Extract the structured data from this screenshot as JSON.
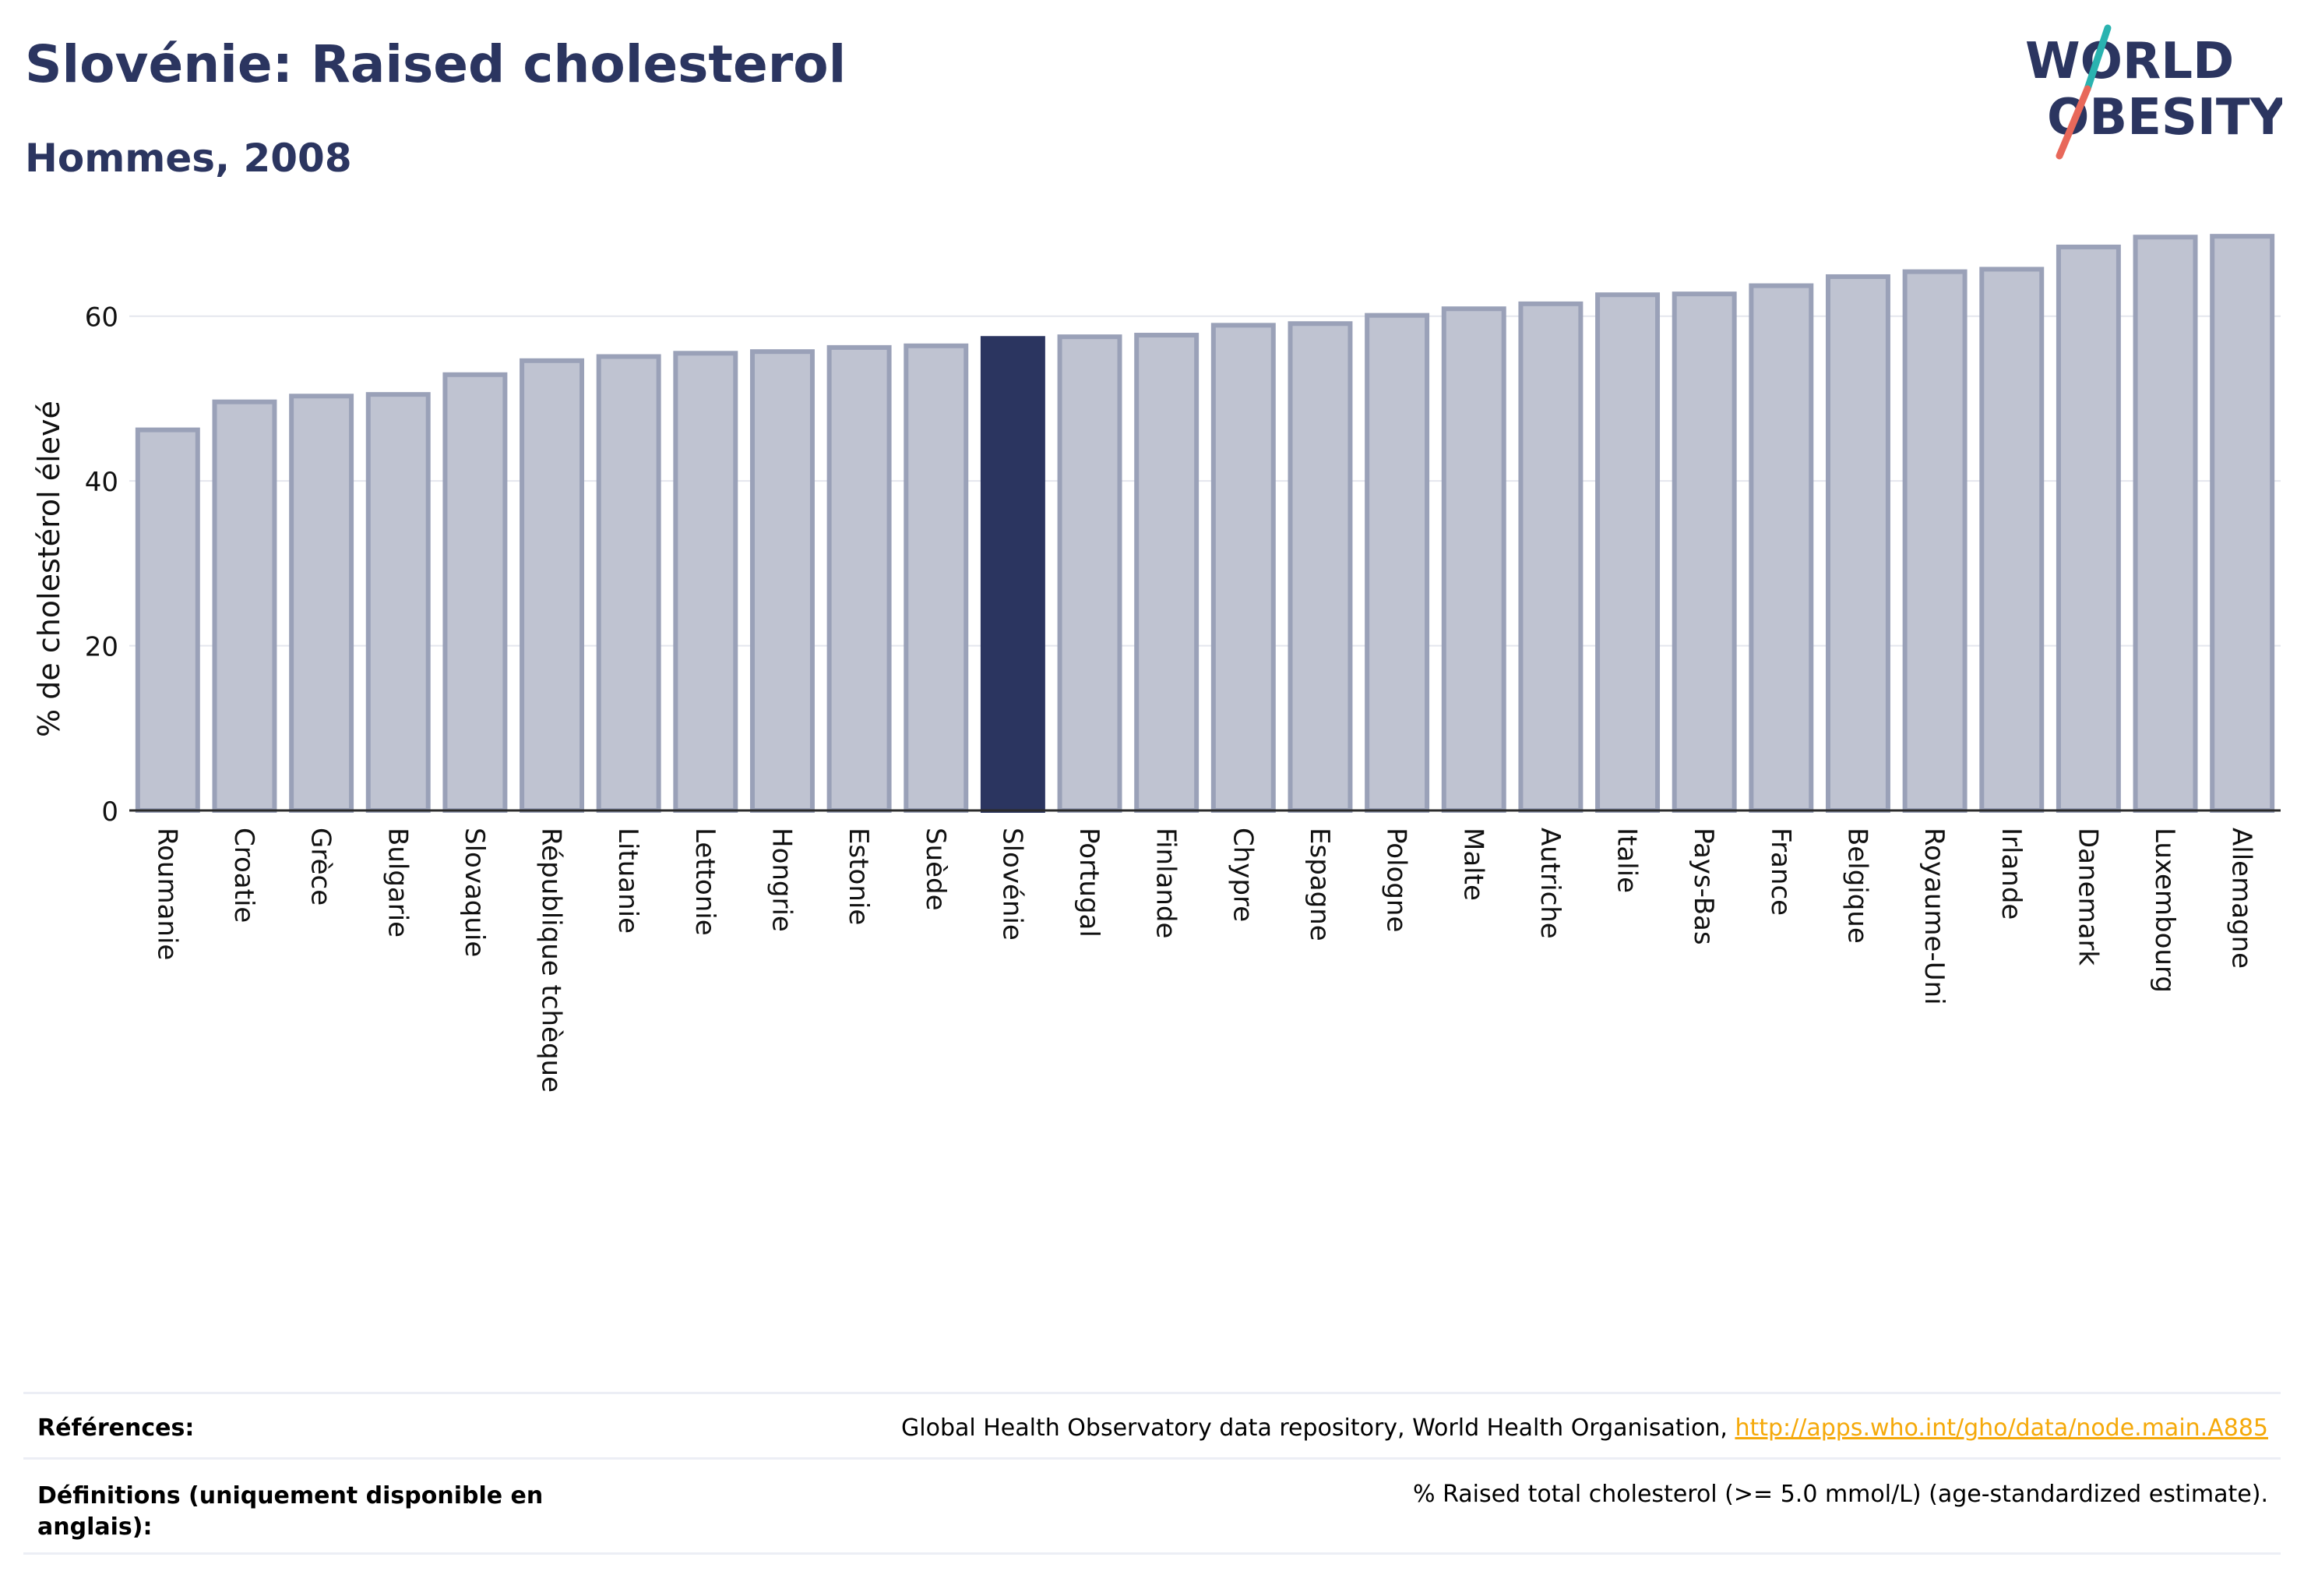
{
  "header": {
    "title": "Slovénie: Raised cholesterol",
    "subtitle": "Hommes, 2008"
  },
  "logo": {
    "line1": "WORLD",
    "line2": "OBESITY",
    "accent_teal": "#2ab3b0",
    "accent_red": "#e8685a"
  },
  "colors": {
    "bar_fill": "#bfc3d1",
    "bar_stroke": "#9aa1b8",
    "highlight_fill": "#2b3560",
    "axis": "#2b2b2b",
    "grid": "#e4e6ee",
    "title": "#2b3560"
  },
  "chart_data": {
    "type": "bar",
    "ylabel": "% de cholestérol élevé",
    "ylim": [
      0,
      70
    ],
    "yticks": [
      0,
      20,
      40,
      60
    ],
    "grid": true,
    "highlight": "Slovénie",
    "categories": [
      "Roumanie",
      "Croatie",
      "Grèce",
      "Bulgarie",
      "Slovaquie",
      "République tchèque",
      "Lituanie",
      "Lettonie",
      "Hongrie",
      "Estonie",
      "Suède",
      "Slovénie",
      "Portugal",
      "Finlande",
      "Chypre",
      "Espagne",
      "Pologne",
      "Malte",
      "Autriche",
      "Italie",
      "Pays-Bas",
      "France",
      "Belgique",
      "Royaume-Uni",
      "Irlande",
      "Danemark",
      "Luxembourg",
      "Allemagne"
    ],
    "values": [
      46.2,
      49.6,
      50.3,
      50.5,
      52.9,
      54.6,
      55.1,
      55.5,
      55.7,
      56.2,
      56.4,
      57.3,
      57.5,
      57.7,
      58.9,
      59.1,
      60.1,
      60.9,
      61.5,
      62.6,
      62.7,
      63.7,
      64.8,
      65.4,
      65.7,
      68.4,
      69.6,
      69.7
    ]
  },
  "footer": {
    "references_label": "Références:",
    "references_text": "Global Health Observatory data repository, World Health Organisation, ",
    "references_link": "http://apps.who.int/gho/data/node.main.A885",
    "definitions_label": "Définitions (uniquement disponible en anglais):",
    "definitions_text": "% Raised total cholesterol (>= 5.0 mmol/L) (age-standardized estimate)."
  }
}
